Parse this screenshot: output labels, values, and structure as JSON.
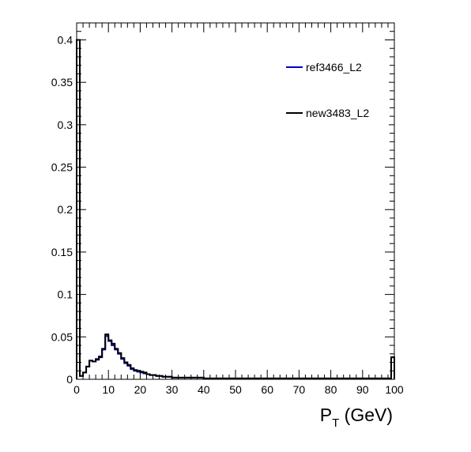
{
  "chart_data": {
    "type": "line",
    "step": true,
    "title": "",
    "xlabel": "P_T (GeV)",
    "xlabel_main": "P",
    "xlabel_sub": "T",
    "xlabel_rest": " (GeV)",
    "ylabel": "",
    "xlim": [
      0,
      100
    ],
    "ylim": [
      0,
      0.42
    ],
    "xticks": [
      0,
      10,
      20,
      30,
      40,
      50,
      60,
      70,
      80,
      90,
      100
    ],
    "xtick_labels": [
      "0",
      "10",
      "20",
      "30",
      "40",
      "50",
      "60",
      "70",
      "80",
      "90",
      "100"
    ],
    "yticks": [
      0,
      0.05,
      0.1,
      0.15,
      0.2,
      0.25,
      0.3,
      0.35,
      0.4
    ],
    "ytick_labels": [
      "0",
      "0.05",
      "0.1",
      "0.15",
      "0.2",
      "0.25",
      "0.3",
      "0.35",
      "0.4"
    ],
    "grid": false,
    "legend_position": "top-right",
    "bin_edges": [
      0,
      1,
      2,
      3,
      4,
      5,
      6,
      7,
      8,
      9,
      10,
      11,
      12,
      13,
      14,
      15,
      16,
      17,
      18,
      19,
      20,
      21,
      22,
      23,
      24,
      25,
      26,
      27,
      28,
      29,
      30,
      31,
      32,
      33,
      34,
      35,
      36,
      37,
      38,
      39,
      40,
      41,
      42,
      43,
      44,
      45,
      46,
      47,
      48,
      49,
      50,
      51,
      52,
      53,
      54,
      55,
      56,
      57,
      58,
      59,
      60,
      61,
      62,
      63,
      64,
      65,
      66,
      67,
      68,
      69,
      70,
      71,
      72,
      73,
      74,
      75,
      76,
      77,
      78,
      79,
      80,
      81,
      82,
      83,
      84,
      85,
      86,
      87,
      88,
      89,
      90,
      91,
      92,
      93,
      94,
      95,
      96,
      97,
      98,
      99,
      100
    ],
    "series": [
      {
        "name": "ref3466_L2",
        "color": "#0000cc",
        "values": [
          0.4,
          0.004,
          0.008,
          0.015,
          0.022,
          0.021,
          0.024,
          0.027,
          0.035,
          0.051,
          0.045,
          0.04,
          0.035,
          0.03,
          0.024,
          0.019,
          0.016,
          0.012,
          0.01,
          0.009,
          0.008,
          0.007,
          0.006,
          0.005,
          0.005,
          0.004,
          0.004,
          0.003,
          0.003,
          0.003,
          0.002,
          0.002,
          0.002,
          0.002,
          0.002,
          0.002,
          0.002,
          0.002,
          0.002,
          0.002,
          0.001,
          0.001,
          0.001,
          0.001,
          0.001,
          0.001,
          0.001,
          0.001,
          0.001,
          0.001,
          0.001,
          0.001,
          0.001,
          0.001,
          0.001,
          0.001,
          0.001,
          0.001,
          0.001,
          0.001,
          0.001,
          0.001,
          0.001,
          0.001,
          0.001,
          0.001,
          0.001,
          0.001,
          0.001,
          0.001,
          0.001,
          0.001,
          0.001,
          0.001,
          0.001,
          0.001,
          0.001,
          0.001,
          0.001,
          0.001,
          0.001,
          0.001,
          0.001,
          0.001,
          0.001,
          0.001,
          0.001,
          0.001,
          0.001,
          0.001,
          0.001,
          0.001,
          0.001,
          0.001,
          0.001,
          0.001,
          0.001,
          0.001,
          0.001,
          0.026
        ]
      },
      {
        "name": "new3483_L2",
        "color": "#000000",
        "values": [
          0.4,
          0.004,
          0.008,
          0.015,
          0.022,
          0.021,
          0.023,
          0.026,
          0.036,
          0.053,
          0.046,
          0.042,
          0.036,
          0.031,
          0.025,
          0.02,
          0.017,
          0.013,
          0.011,
          0.01,
          0.009,
          0.008,
          0.006,
          0.005,
          0.005,
          0.004,
          0.004,
          0.003,
          0.003,
          0.003,
          0.002,
          0.002,
          0.002,
          0.002,
          0.002,
          0.002,
          0.002,
          0.002,
          0.002,
          0.002,
          0.001,
          0.001,
          0.001,
          0.001,
          0.001,
          0.001,
          0.001,
          0.001,
          0.001,
          0.001,
          0.001,
          0.001,
          0.001,
          0.001,
          0.001,
          0.001,
          0.001,
          0.001,
          0.001,
          0.001,
          0.001,
          0.001,
          0.001,
          0.001,
          0.001,
          0.001,
          0.001,
          0.001,
          0.001,
          0.001,
          0.001,
          0.001,
          0.001,
          0.001,
          0.001,
          0.001,
          0.001,
          0.001,
          0.001,
          0.001,
          0.001,
          0.001,
          0.001,
          0.001,
          0.001,
          0.001,
          0.001,
          0.001,
          0.001,
          0.001,
          0.001,
          0.001,
          0.001,
          0.001,
          0.001,
          0.001,
          0.001,
          0.001,
          0.001,
          0.026
        ]
      }
    ]
  }
}
